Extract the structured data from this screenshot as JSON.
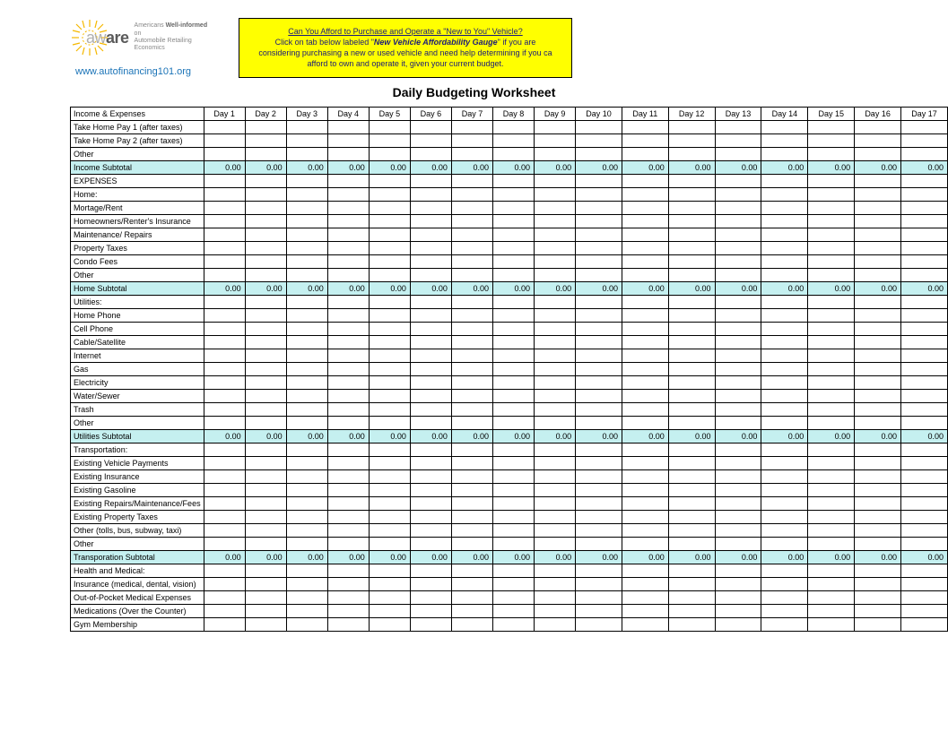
{
  "logo": {
    "aw": "aw",
    "are": "are",
    "tagline_1": "Americans ",
    "tagline_1b": "Well-informed",
    "tagline_1c": " on",
    "tagline_2": "Automobile Retailing Economics",
    "sun_color": "#f5b800",
    "url": "www.autofinancing101.org"
  },
  "callout": {
    "line1": "Can You Afford to Purchase and Operate a \"New to You\" Vehicle?",
    "line2a": "Click on tab below labeled \"",
    "line2b": "New Vehicle Affordability Gauge",
    "line2c": "\" if you are",
    "line3": "considering purchasing a new or used vehicle and need help determining if you ca",
    "line4": "afford to own and operate it, given your current budget.",
    "bg": "#ffff00",
    "text_color": "#1a1a7a"
  },
  "title": "Daily Budgeting Worksheet",
  "table": {
    "subtotal_bg": "#c5f0f0",
    "label_col_width": 136,
    "day_col_width": 42,
    "day_col_width_wide": 48,
    "header_label": "Income & Expenses",
    "days": [
      "Day 1",
      "Day 2",
      "Day 3",
      "Day 4",
      "Day 5",
      "Day 6",
      "Day 7",
      "Day 8",
      "Day 9",
      "Day 10",
      "Day 11",
      "Day 12",
      "Day 13",
      "Day 14",
      "Day 15",
      "Day 16",
      "Day 17"
    ],
    "zero": "0.00",
    "rows": [
      {
        "label": "Take Home Pay 1 (after taxes)",
        "type": "row"
      },
      {
        "label": "Take Home Pay 2 (after taxes)",
        "type": "row"
      },
      {
        "label": "Other",
        "type": "row"
      },
      {
        "label": "Income Subtotal",
        "type": "subtotal"
      },
      {
        "label": "EXPENSES",
        "type": "row"
      },
      {
        "label": "Home:",
        "type": "row"
      },
      {
        "label": "Mortage/Rent",
        "type": "row"
      },
      {
        "label": "Homeowners/Renter's Insurance",
        "type": "row"
      },
      {
        "label": "Maintenance/ Repairs",
        "type": "row"
      },
      {
        "label": "Property Taxes",
        "type": "row"
      },
      {
        "label": "Condo Fees",
        "type": "row"
      },
      {
        "label": "Other",
        "type": "row"
      },
      {
        "label": " Home Subtotal",
        "type": "subtotal"
      },
      {
        "label": "Utilities:",
        "type": "row"
      },
      {
        "label": "Home Phone",
        "type": "row"
      },
      {
        "label": "Cell Phone",
        "type": "row"
      },
      {
        "label": "Cable/Satellite",
        "type": "row"
      },
      {
        "label": "Internet",
        "type": "row"
      },
      {
        "label": "Gas",
        "type": "row"
      },
      {
        "label": "Electricity",
        "type": "row"
      },
      {
        "label": "Water/Sewer",
        "type": "row"
      },
      {
        "label": "Trash",
        "type": "row"
      },
      {
        "label": "Other",
        "type": "row"
      },
      {
        "label": "Utilities Subtotal",
        "type": "subtotal"
      },
      {
        "label": "Transportation:",
        "type": "row"
      },
      {
        "label": "Existing Vehicle Payments",
        "type": "row"
      },
      {
        "label": "Existing Insurance",
        "type": "row"
      },
      {
        "label": "Existing Gasoline",
        "type": "row"
      },
      {
        "label": "Existing Repairs/Maintenance/Fees",
        "type": "row"
      },
      {
        "label": "Existing Property Taxes",
        "type": "row"
      },
      {
        "label": "Other (tolls, bus, subway, taxi)",
        "type": "row"
      },
      {
        "label": "Other",
        "type": "row"
      },
      {
        "label": "Transporation Subtotal",
        "type": "subtotal"
      },
      {
        "label": "Health and Medical:",
        "type": "row"
      },
      {
        "label": "Insurance (medical, dental, vision)",
        "type": "row"
      },
      {
        "label": "Out-of-Pocket Medical Expenses",
        "type": "row"
      },
      {
        "label": "Medications (Over the Counter)",
        "type": "row"
      },
      {
        "label": "Gym Membership",
        "type": "row"
      }
    ]
  }
}
